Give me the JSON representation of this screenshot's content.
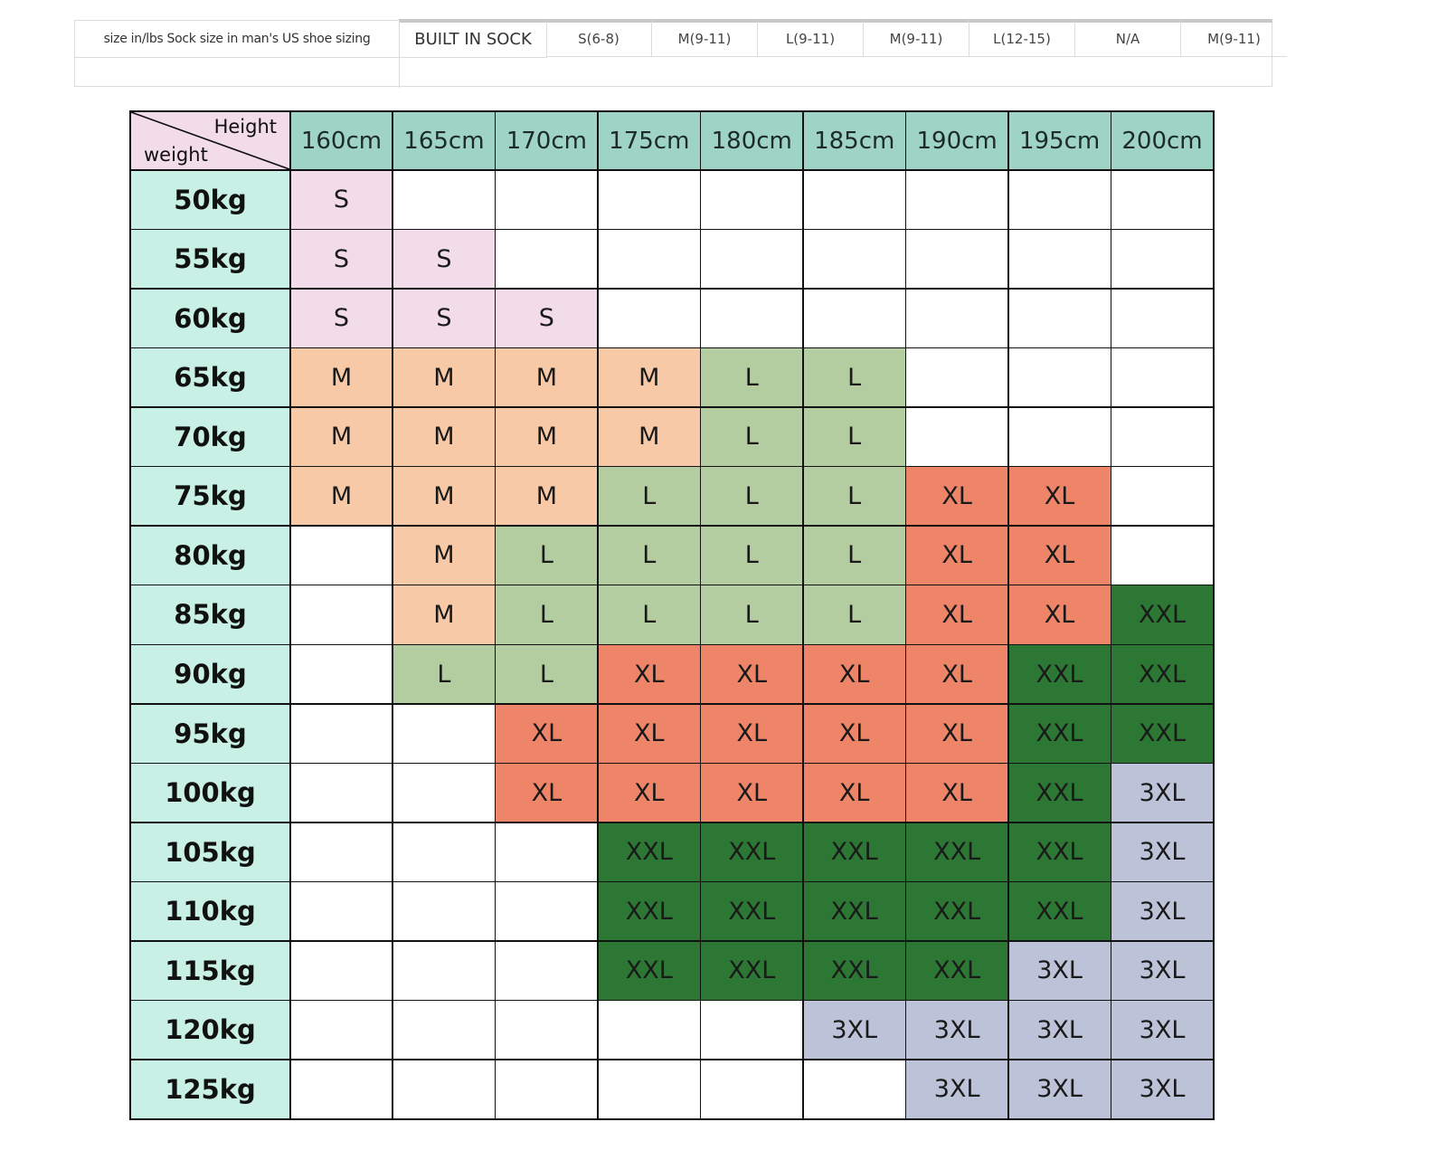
{
  "sock_table": {
    "label": "size in/lbs Sock size in  man's US shoe sizing",
    "header": "BUILT IN SOCK",
    "sizes": [
      "S(6-8)",
      "M(9-11)",
      "L(9-11)",
      "M(9-11)",
      "L(12-15)",
      "N/A",
      "M(9-11)"
    ]
  },
  "size_chart": {
    "corner": {
      "height_label": "Height",
      "weight_label": "weight"
    },
    "heights": [
      "160cm",
      "165cm",
      "170cm",
      "175cm",
      "180cm",
      "185cm",
      "190cm",
      "195cm",
      "200cm"
    ],
    "weights": [
      "50kg",
      "55kg",
      "60kg",
      "65kg",
      "70kg",
      "75kg",
      "80kg",
      "85kg",
      "90kg",
      "95kg",
      "100kg",
      "105kg",
      "110kg",
      "115kg",
      "120kg",
      "125kg"
    ],
    "grid": [
      [
        "S",
        "",
        "",
        "",
        "",
        "",
        "",
        "",
        ""
      ],
      [
        "S",
        "S",
        "",
        "",
        "",
        "",
        "",
        "",
        ""
      ],
      [
        "S",
        "S",
        "S",
        "",
        "",
        "",
        "",
        "",
        ""
      ],
      [
        "M",
        "M",
        "M",
        "M",
        "L",
        "L",
        "",
        "",
        ""
      ],
      [
        "M",
        "M",
        "M",
        "M",
        "L",
        "L",
        "",
        "",
        ""
      ],
      [
        "M",
        "M",
        "M",
        "L",
        "L",
        "L",
        "XL",
        "XL",
        ""
      ],
      [
        "",
        "M",
        "L",
        "L",
        "L",
        "L",
        "XL",
        "XL",
        ""
      ],
      [
        "",
        "M",
        "L",
        "L",
        "L",
        "L",
        "XL",
        "XL",
        "XXL"
      ],
      [
        "",
        "L",
        "L",
        "XL",
        "XL",
        "XL",
        "XL",
        "XXL",
        "XXL"
      ],
      [
        "",
        "",
        "XL",
        "XL",
        "XL",
        "XL",
        "XL",
        "XXL",
        "XXL"
      ],
      [
        "",
        "",
        "XL",
        "XL",
        "XL",
        "XL",
        "XL",
        "XXL",
        "3XL"
      ],
      [
        "",
        "",
        "",
        "XXL",
        "XXL",
        "XXL",
        "XXL",
        "XXL",
        "3XL"
      ],
      [
        "",
        "",
        "",
        "XXL",
        "XXL",
        "XXL",
        "XXL",
        "XXL",
        "3XL"
      ],
      [
        "",
        "",
        "",
        "XXL",
        "XXL",
        "XXL",
        "XXL",
        "3XL",
        "3XL"
      ],
      [
        "",
        "",
        "",
        "",
        "",
        "3XL",
        "3XL",
        "3XL",
        "3XL"
      ],
      [
        "",
        "",
        "",
        "",
        "",
        "",
        "3XL",
        "3XL",
        "3XL"
      ]
    ],
    "size_colors": {
      "S": "#f2dcea",
      "M": "#f7c9a6",
      "L": "#b3cca0",
      "XL": "#ee8468",
      "XXL": "#2d7734",
      "3XL": "#bcc3d8"
    }
  }
}
